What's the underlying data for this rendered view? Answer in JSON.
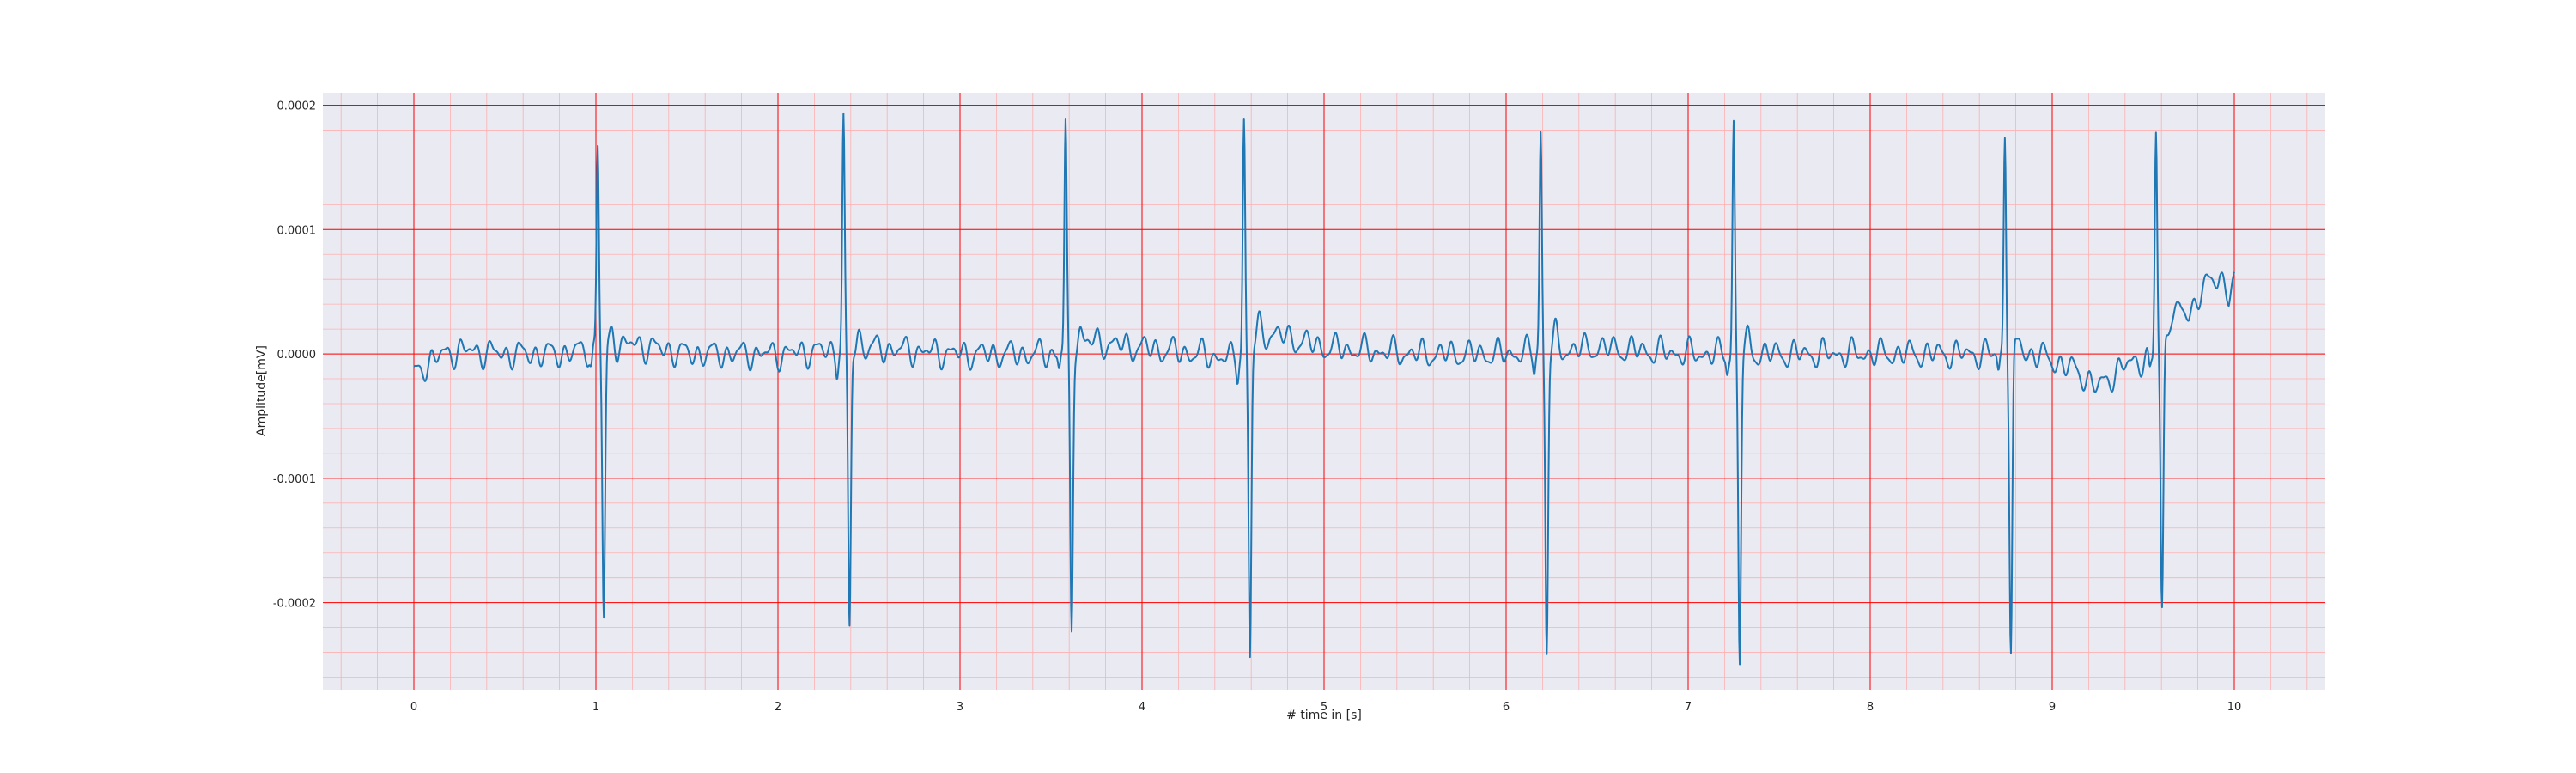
{
  "chart_data": {
    "type": "line",
    "title": "",
    "xlabel": "# time in [s]",
    "ylabel": "Amplitude[mV]",
    "xlim": [
      -0.5,
      10.5
    ],
    "ylim": [
      -0.00027,
      0.00021
    ],
    "x_ticks": [
      0,
      1,
      2,
      3,
      4,
      5,
      6,
      7,
      8,
      9,
      10
    ],
    "x_tick_labels": [
      "0",
      "1",
      "2",
      "3",
      "4",
      "5",
      "6",
      "7",
      "8",
      "9",
      "10"
    ],
    "y_ticks": [
      -0.0002,
      -0.0001,
      0.0,
      0.0001,
      0.0002
    ],
    "y_tick_labels": [
      "-0.0002",
      "-0.0001",
      "0.0000",
      "0.0001",
      "0.0002"
    ],
    "grid": "on",
    "colors": {
      "line": "#1f77b4",
      "plot_background": "#eaeaf2",
      "major_grid": "#ff0000",
      "minor_grid": "#ffb0b0"
    },
    "beats": [
      {
        "t": 1.01,
        "peak": 0.000165,
        "trough": -0.00022
      },
      {
        "t": 2.36,
        "peak": 0.000185,
        "trough": -0.00023
      },
      {
        "t": 3.58,
        "peak": 0.00018,
        "trough": -0.00023
      },
      {
        "t": 4.56,
        "peak": 0.000187,
        "trough": -0.000252
      },
      {
        "t": 6.19,
        "peak": 0.000178,
        "trough": -0.000242
      },
      {
        "t": 7.25,
        "peak": 0.000186,
        "trough": -0.000245
      },
      {
        "t": 8.74,
        "peak": 0.000178,
        "trough": -0.000242
      },
      {
        "t": 9.57,
        "peak": 0.000178,
        "trough": -0.000213
      }
    ],
    "baseline": [
      [
        0.0,
        -1.8e-05
      ],
      [
        0.1,
        -4e-06
      ],
      [
        0.25,
        3e-06
      ],
      [
        0.5,
        0.0
      ],
      [
        0.8,
        0.0
      ],
      [
        1.2,
        8e-06
      ],
      [
        1.5,
        0.0
      ],
      [
        2.0,
        0.0
      ],
      [
        2.5,
        5e-06
      ],
      [
        3.0,
        0.0
      ],
      [
        3.5,
        0.0
      ],
      [
        3.7,
        1e-05
      ],
      [
        4.0,
        5e-06
      ],
      [
        4.3,
        0.0
      ],
      [
        4.5,
        -4e-06
      ],
      [
        4.7,
        1.7e-05
      ],
      [
        5.0,
        5e-06
      ],
      [
        5.5,
        0.0
      ],
      [
        6.0,
        0.0
      ],
      [
        6.5,
        5e-06
      ],
      [
        7.0,
        0.0
      ],
      [
        7.5,
        0.0
      ],
      [
        8.0,
        0.0
      ],
      [
        8.5,
        0.0
      ],
      [
        8.9,
        0.0
      ],
      [
        9.0,
        -5e-06
      ],
      [
        9.15,
        -1.5e-05
      ],
      [
        9.25,
        -2.8e-05
      ],
      [
        9.3,
        -2e-05
      ],
      [
        9.45,
        -5e-06
      ],
      [
        9.55,
        -5e-06
      ],
      [
        9.65,
        2e-05
      ],
      [
        9.7,
        3.5e-05
      ],
      [
        9.75,
        3.3e-05
      ],
      [
        9.8,
        4.5e-05
      ],
      [
        9.85,
        5.5e-05
      ],
      [
        9.92,
        6.5e-05
      ],
      [
        9.97,
        4.5e-05
      ],
      [
        10.0,
        5.8e-05
      ]
    ]
  }
}
